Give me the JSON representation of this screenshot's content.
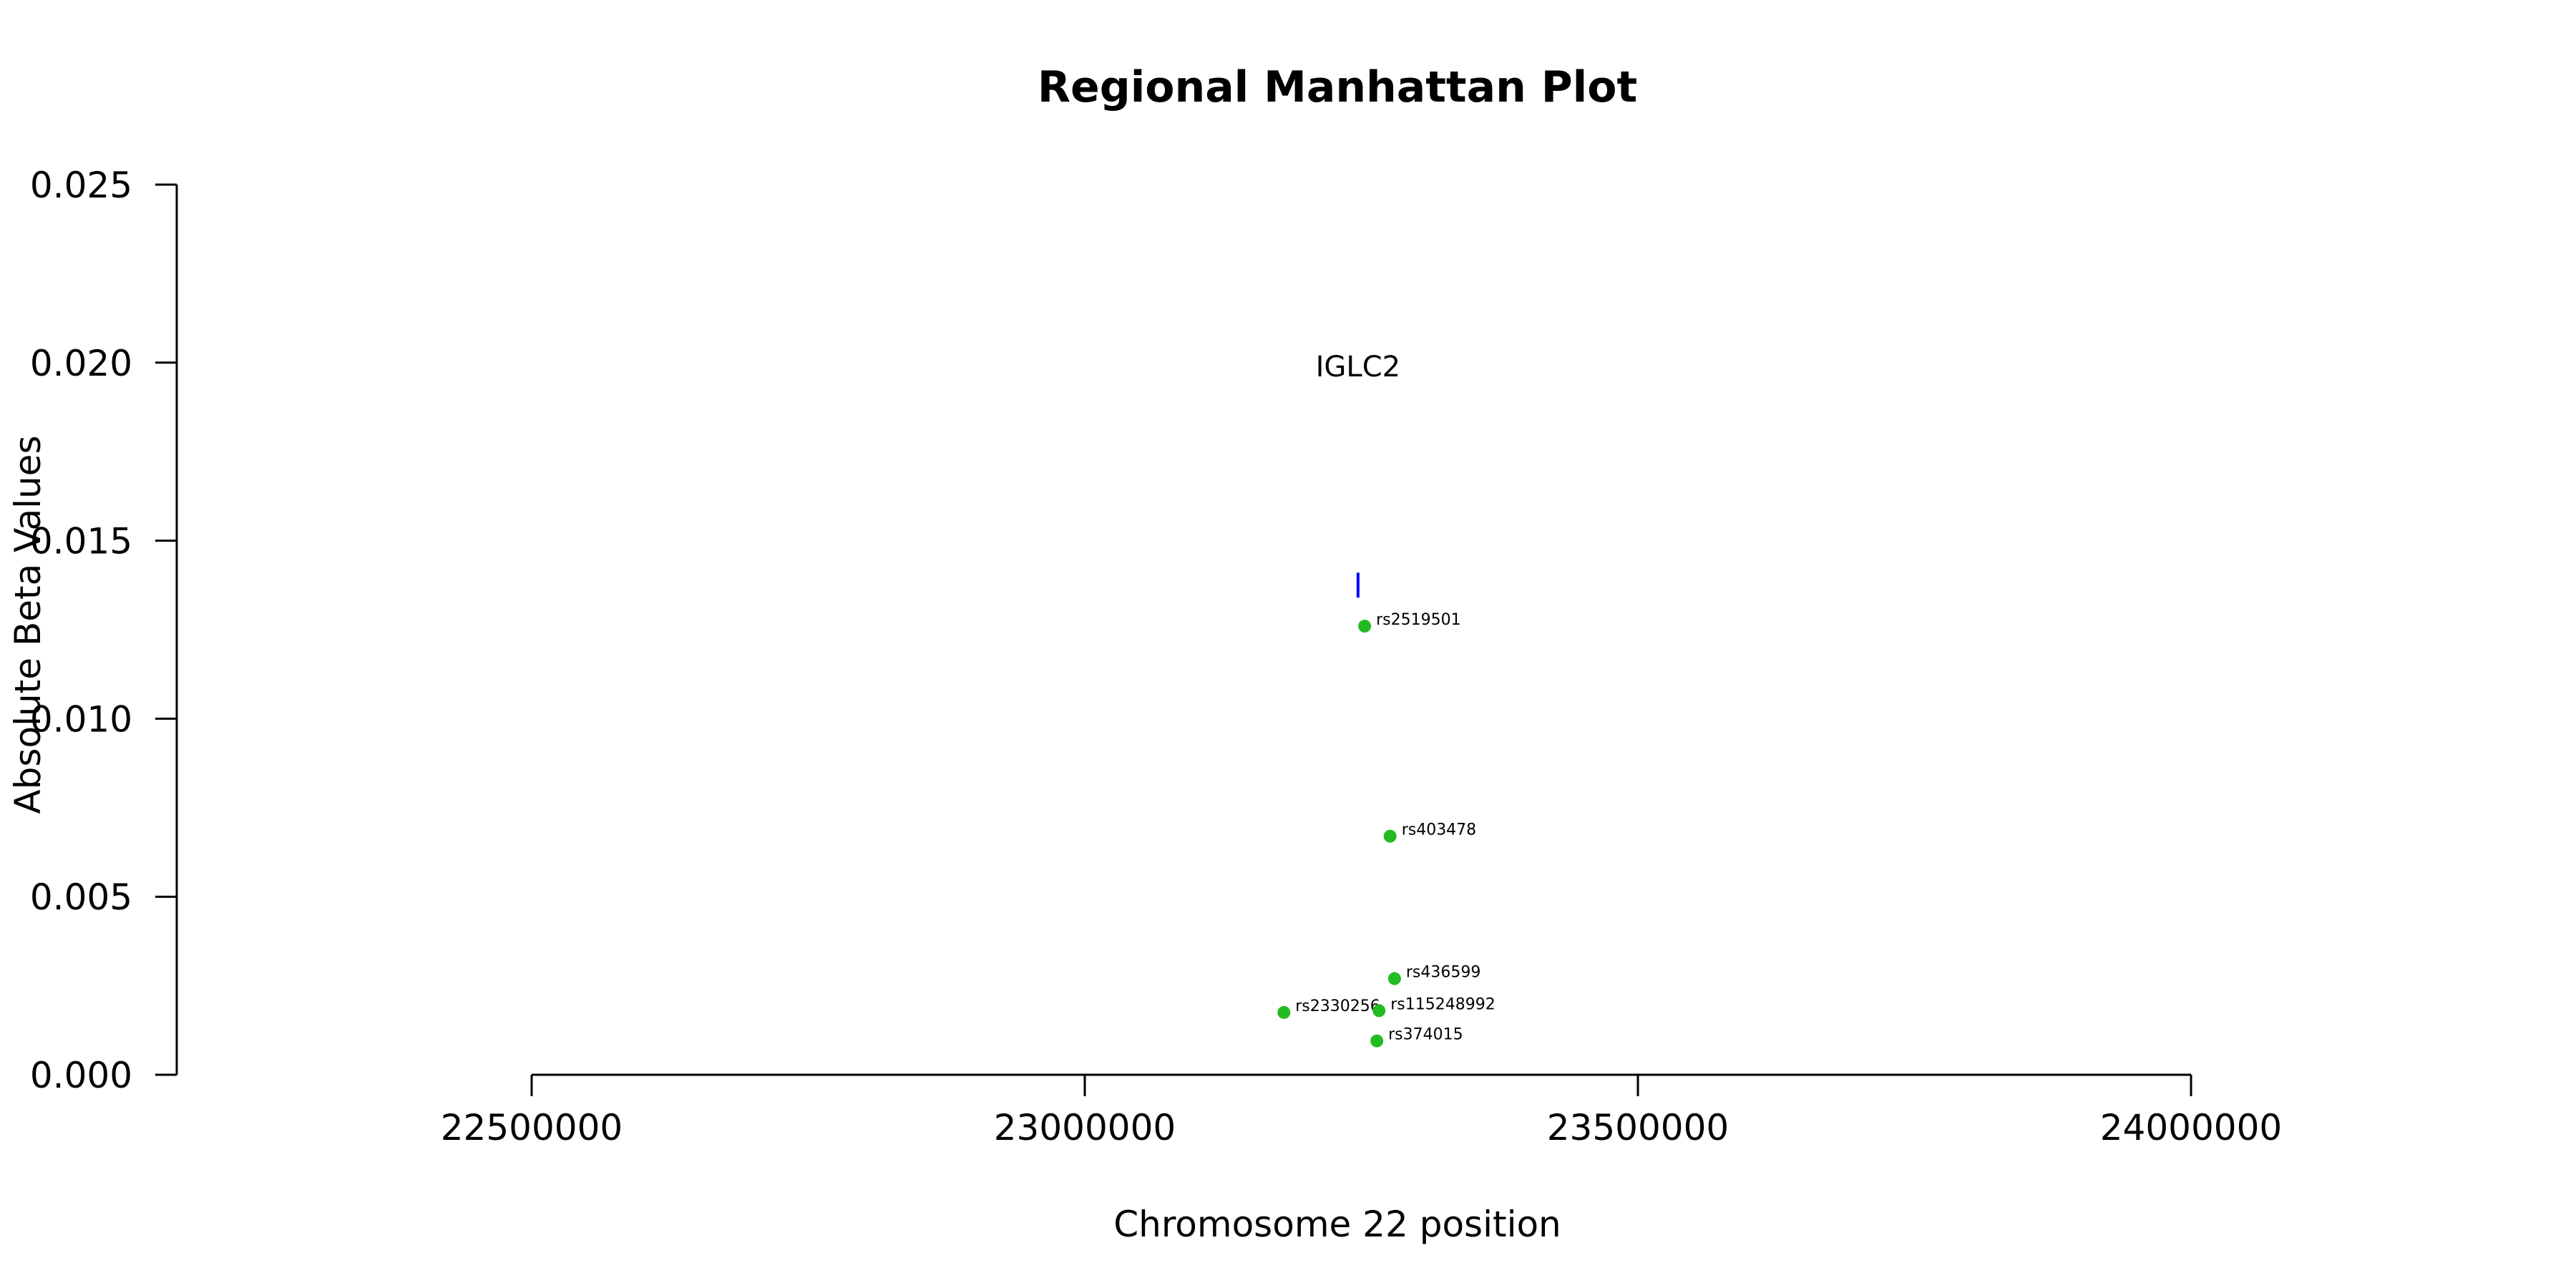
{
  "chart_data": {
    "type": "scatter",
    "title": "Regional Manhattan Plot",
    "xlabel": "Chromosome 22 position",
    "ylabel": "Absolute Beta Values",
    "xlim": [
      22500000,
      24000000
    ],
    "ylim": [
      0.0,
      0.025
    ],
    "x_ticks": [
      22500000,
      23000000,
      23500000,
      24000000
    ],
    "y_ticks": [
      "0.000",
      "0.005",
      "0.010",
      "0.015",
      "0.020",
      "0.025"
    ],
    "point_color": "#22bb22",
    "gene_marker_color": "#0000ff",
    "points": [
      {
        "label": "rs2519501",
        "x": 23253000,
        "y": 0.0126
      },
      {
        "label": "rs403478",
        "x": 23276000,
        "y": 0.0067
      },
      {
        "label": "rs436599",
        "x": 23280000,
        "y": 0.0027
      },
      {
        "label": "rs2330256",
        "x": 23180000,
        "y": 0.00175
      },
      {
        "label": "rs115248992",
        "x": 23266000,
        "y": 0.0018
      },
      {
        "label": "rs374015",
        "x": 23264000,
        "y": 0.00095
      }
    ],
    "genes": [
      {
        "name": "IGLC2",
        "x": 23247000,
        "y_low": 0.0134,
        "y_high": 0.0141,
        "label_y": 0.0199
      }
    ],
    "grid": false,
    "legend": "none"
  }
}
